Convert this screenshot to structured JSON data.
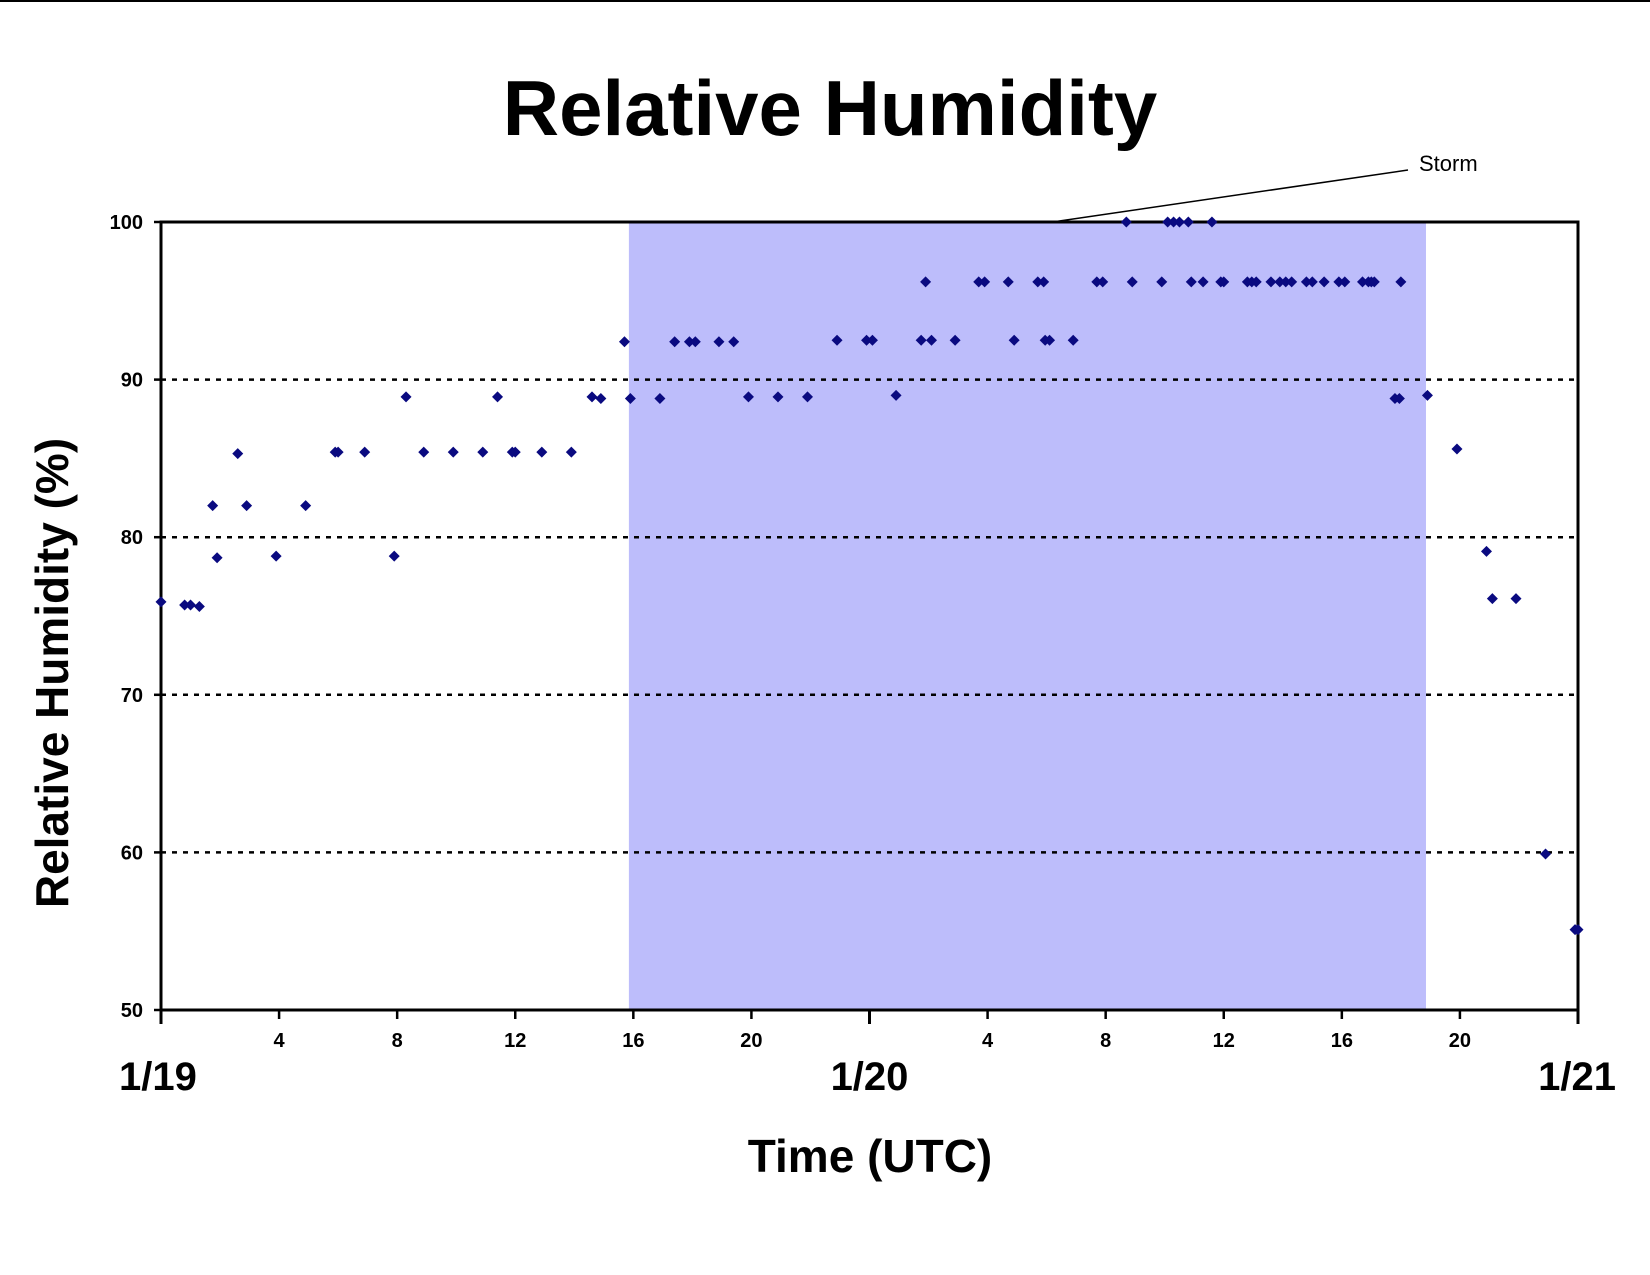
{
  "chart_data": {
    "type": "scatter",
    "title": "Relative Humidity",
    "xlabel": "Time (UTC)",
    "ylabel": "Relative Humidity (%)",
    "ylim": [
      50,
      100
    ],
    "yticks": [
      50,
      60,
      70,
      80,
      90,
      100
    ],
    "xlim_hours": [
      0,
      48
    ],
    "hour_ticks": [
      {
        "hour": 4,
        "label": "4"
      },
      {
        "hour": 8,
        "label": "8"
      },
      {
        "hour": 12,
        "label": "12"
      },
      {
        "hour": 16,
        "label": "16"
      },
      {
        "hour": 20,
        "label": "20"
      },
      {
        "hour": 28,
        "label": "4"
      },
      {
        "hour": 32,
        "label": "8"
      },
      {
        "hour": 36,
        "label": "12"
      },
      {
        "hour": 40,
        "label": "16"
      },
      {
        "hour": 44,
        "label": "20"
      }
    ],
    "day_labels": [
      {
        "hour": 0,
        "label": "1/19"
      },
      {
        "hour": 24,
        "label": "1/20"
      },
      {
        "hour": 48,
        "label": "1/21"
      }
    ],
    "grid": "horizontal dotted at 60, 70, 80, 90",
    "marker_color": "#0a0a80",
    "shaded_region": {
      "label": "Storm",
      "x_start_hours": 15.85,
      "x_end_hours": 42.85,
      "color": "#bdbdfb"
    },
    "annotations": [
      {
        "text": "Storm"
      }
    ],
    "series": [
      {
        "points": [
          [
            0.0,
            75.9
          ],
          [
            0.8,
            75.7
          ],
          [
            1.0,
            75.7
          ],
          [
            1.3,
            75.6
          ],
          [
            1.75,
            82.0
          ],
          [
            1.9,
            78.7
          ],
          [
            2.6,
            85.3
          ],
          [
            2.9,
            82.0
          ],
          [
            3.9,
            78.8
          ],
          [
            4.9,
            82.0
          ],
          [
            5.9,
            85.4
          ],
          [
            6.0,
            85.4
          ],
          [
            6.9,
            85.4
          ],
          [
            7.9,
            78.8
          ],
          [
            8.3,
            88.9
          ],
          [
            8.9,
            85.4
          ],
          [
            9.9,
            85.4
          ],
          [
            10.9,
            85.4
          ],
          [
            11.4,
            88.9
          ],
          [
            11.9,
            85.4
          ],
          [
            12.0,
            85.4
          ],
          [
            12.9,
            85.4
          ],
          [
            13.9,
            85.4
          ],
          [
            14.6,
            88.9
          ],
          [
            14.9,
            88.8
          ],
          [
            15.7,
            92.4
          ],
          [
            15.9,
            88.8
          ],
          [
            16.9,
            88.8
          ],
          [
            17.4,
            92.4
          ],
          [
            17.9,
            92.4
          ],
          [
            18.1,
            92.4
          ],
          [
            18.9,
            92.4
          ],
          [
            19.4,
            92.4
          ],
          [
            19.9,
            88.9
          ],
          [
            20.9,
            88.9
          ],
          [
            21.9,
            88.9
          ],
          [
            22.9,
            92.5
          ],
          [
            23.9,
            92.5
          ],
          [
            24.1,
            92.5
          ],
          [
            24.9,
            89.0
          ],
          [
            25.75,
            92.5
          ],
          [
            25.9,
            96.2
          ],
          [
            26.1,
            92.5
          ],
          [
            26.9,
            92.5
          ],
          [
            27.7,
            96.2
          ],
          [
            27.9,
            96.2
          ],
          [
            28.7,
            96.2
          ],
          [
            28.9,
            92.5
          ],
          [
            29.7,
            96.2
          ],
          [
            29.9,
            96.2
          ],
          [
            29.95,
            92.5
          ],
          [
            30.1,
            92.5
          ],
          [
            30.9,
            92.5
          ],
          [
            31.7,
            96.2
          ],
          [
            31.9,
            96.2
          ],
          [
            32.7,
            100.0
          ],
          [
            32.9,
            96.2
          ],
          [
            33.9,
            96.2
          ],
          [
            34.1,
            100.0
          ],
          [
            34.3,
            100.0
          ],
          [
            34.5,
            100.0
          ],
          [
            34.8,
            100.0
          ],
          [
            34.9,
            96.2
          ],
          [
            35.3,
            96.2
          ],
          [
            35.6,
            100.0
          ],
          [
            35.9,
            96.2
          ],
          [
            36.0,
            96.2
          ],
          [
            36.8,
            96.2
          ],
          [
            36.95,
            96.2
          ],
          [
            37.1,
            96.2
          ],
          [
            37.6,
            96.2
          ],
          [
            37.9,
            96.2
          ],
          [
            38.1,
            96.2
          ],
          [
            38.3,
            96.2
          ],
          [
            38.8,
            96.2
          ],
          [
            39.0,
            96.2
          ],
          [
            39.4,
            96.2
          ],
          [
            39.9,
            96.2
          ],
          [
            40.1,
            96.2
          ],
          [
            40.7,
            96.2
          ],
          [
            40.9,
            96.2
          ],
          [
            41.0,
            96.2
          ],
          [
            41.1,
            96.2
          ],
          [
            41.8,
            88.8
          ],
          [
            41.95,
            88.8
          ],
          [
            42.0,
            96.2
          ],
          [
            42.9,
            89.0
          ],
          [
            43.9,
            85.6
          ],
          [
            44.9,
            79.1
          ],
          [
            45.1,
            76.1
          ],
          [
            45.9,
            76.1
          ],
          [
            46.9,
            59.9
          ],
          [
            47.9,
            55.1
          ],
          [
            48.0,
            55.1
          ]
        ]
      }
    ]
  }
}
